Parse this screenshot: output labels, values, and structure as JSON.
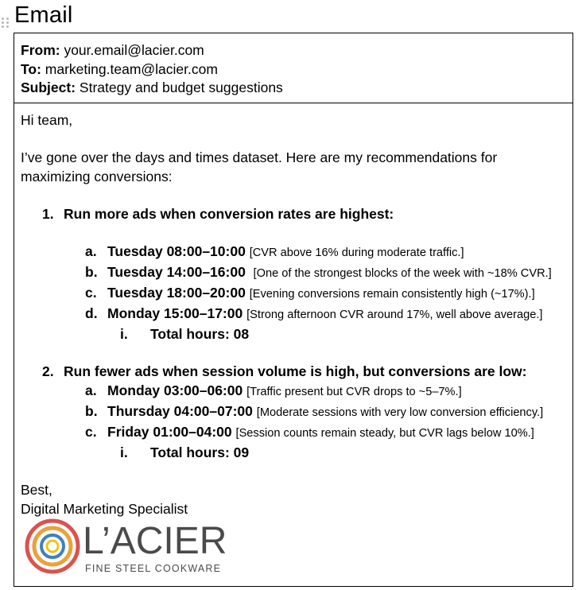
{
  "page": {
    "title": "Email"
  },
  "header": {
    "from_label": "From:",
    "from_value": "your.email@lacier.com",
    "to_label": "To:",
    "to_value": "marketing.team@lacier.com",
    "subject_label": "Subject:",
    "subject_value": "Strategy and budget suggestions"
  },
  "body": {
    "greeting": "Hi team,",
    "intro": "I’ve gone over the days and times dataset. Here are my recommendations for maximizing conversions:",
    "sections": [
      {
        "num": "1.",
        "heading": "Run more ads when conversion rates are highest:",
        "items": [
          {
            "letter": "a.",
            "slot": "Tuesday 08:00–10:00",
            "note": "[CVR above 16% during moderate traffic.]"
          },
          {
            "letter": "b.",
            "slot": "Tuesday 14:00–16:00",
            "note": "[One of the strongest blocks of the week with ~18% CVR.]"
          },
          {
            "letter": "c.",
            "slot": "Tuesday 18:00–20:00",
            "note": "[Evening conversions remain consistently high (~17%).]"
          },
          {
            "letter": "d.",
            "slot": "Monday 15:00–17:00",
            "note": "[Strong afternoon CVR around 17%, well above average.]"
          }
        ],
        "total_num": "i.",
        "total": "Total hours: 08"
      },
      {
        "num": "2.",
        "heading": "Run fewer ads when session volume is high, but conversions are low:",
        "items": [
          {
            "letter": "a.",
            "slot": "Monday 03:00–06:00",
            "note": "[Traffic present but CVR drops to ~5–7%.]"
          },
          {
            "letter": "b.",
            "slot": "Thursday 04:00–07:00",
            "note": "[Moderate sessions with very low conversion efficiency.]"
          },
          {
            "letter": "c.",
            "slot": "Friday 01:00–04:00",
            "note": "[Session counts remain steady, but CVR lags below 10%.]"
          }
        ],
        "total_num": "i.",
        "total": "Total hours: 09"
      }
    ],
    "closing": "Best,",
    "signature": "Digital Marketing Specialist"
  },
  "logo": {
    "brand": "L’ACIER",
    "tagline": "FINE STEEL COOKWARE",
    "ring_colors": [
      "#d9534f",
      "#e8a33d",
      "#3f7fc1",
      "#f2c21a"
    ],
    "text_color": "#4a4a4a"
  }
}
